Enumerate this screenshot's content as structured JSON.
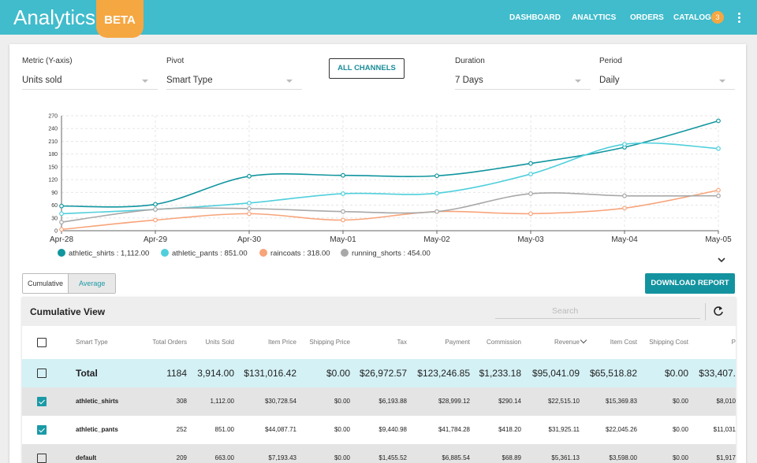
{
  "header": {
    "title": "Analytics",
    "badge": "BETA",
    "nav": [
      "DASHBOARD",
      "ANALYTICS",
      "ORDERS",
      "CATALOG"
    ],
    "catalog_count": 3
  },
  "filters": [
    {
      "label": "Metric (Y-axis)",
      "value": "Units sold"
    },
    {
      "label": "Pivot",
      "value": "Smart Type"
    },
    {
      "label": "Duration",
      "value": "7 Days"
    },
    {
      "label": "Period",
      "value": "Daily"
    }
  ],
  "channels_button": "ALL CHANNELS",
  "chart_data": {
    "type": "line",
    "categories": [
      "Apr-28",
      "Apr-29",
      "Apr-30",
      "May-01",
      "May-02",
      "May-03",
      "May-04",
      "May-05"
    ],
    "ylim": [
      0,
      270
    ],
    "yticks": [
      0,
      30,
      60,
      90,
      120,
      150,
      180,
      210,
      240,
      270
    ],
    "grid": true,
    "series": [
      {
        "name": "athletic_shirts : 1,112.00",
        "color": "#11959f",
        "values": [
          58,
          62,
          128,
          130,
          129,
          158,
          196,
          258
        ]
      },
      {
        "name": "athletic_pants : 851.00",
        "color": "#4fcfdc",
        "values": [
          40,
          50,
          65,
          87,
          88,
          133,
          203,
          193
        ]
      },
      {
        "name": "raincoats : 318.00",
        "color": "#f7a47a",
        "values": [
          3,
          25,
          40,
          25,
          45,
          40,
          53,
          95
        ]
      },
      {
        "name": "running_shorts : 454.00",
        "color": "#a8a8a8",
        "values": [
          20,
          50,
          52,
          45,
          45,
          87,
          82,
          82
        ]
      }
    ]
  },
  "view_toggle": [
    "Cumulative",
    "Average"
  ],
  "active_view": "Average",
  "download_button": "DOWNLOAD REPORT",
  "table": {
    "title": "Cumulative View",
    "search_placeholder": "Search",
    "columns": [
      "Smart Type",
      "Total Orders",
      "Units Sold",
      "Item Price",
      "Shipping Price",
      "Tax",
      "Payment",
      "Commission",
      "Revenue",
      "Item Cost",
      "Shipping Cost",
      "P"
    ],
    "total_row": {
      "checked": false,
      "cells": [
        "Total",
        "1184",
        "3,914.00",
        "$131,016.42",
        "$0.00",
        "$26,972.57",
        "$123,246.85",
        "$1,233.18",
        "$95,041.09",
        "$65,518.82",
        "$0.00",
        "$33,407."
      ]
    },
    "rows": [
      {
        "checked": true,
        "cells": [
          "athletic_shirts",
          "308",
          "1,112.00",
          "$30,728.54",
          "$0.00",
          "$6,193.88",
          "$28,999.12",
          "$290.14",
          "$22,515.10",
          "$15,369.83",
          "$0.00",
          "$8,010"
        ]
      },
      {
        "checked": true,
        "cells": [
          "athletic_pants",
          "252",
          "851.00",
          "$44,087.71",
          "$0.00",
          "$9,440.98",
          "$41,784.28",
          "$418.20",
          "$31,925.11",
          "$22,045.26",
          "$0.00",
          "$11,031"
        ]
      },
      {
        "checked": false,
        "cells": [
          "default",
          "209",
          "663.00",
          "$7,193.43",
          "$0.00",
          "$1,455.52",
          "$6,885.54",
          "$68.89",
          "$5,361.13",
          "$3,598.00",
          "$0.00",
          "$1,917"
        ]
      }
    ]
  }
}
